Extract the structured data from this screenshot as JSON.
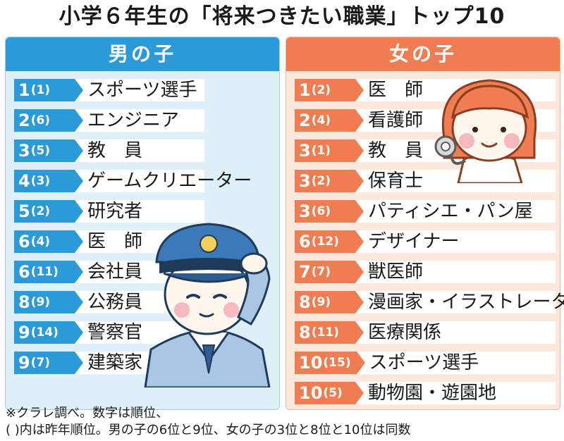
{
  "title": "小学６年生の「将来つきたい職業」トップ10",
  "boys": {
    "header": "男の子",
    "rows": [
      {
        "rank": "1",
        "prev": "(1)",
        "job": "スポーツ選手"
      },
      {
        "rank": "2",
        "prev": "(6)",
        "job": "エンジニア"
      },
      {
        "rank": "3",
        "prev": "(5)",
        "job": "教　員"
      },
      {
        "rank": "4",
        "prev": "(3)",
        "job": "ゲームクリエーター"
      },
      {
        "rank": "5",
        "prev": "(2)",
        "job": "研究者"
      },
      {
        "rank": "6",
        "prev": "(4)",
        "job": "医　師"
      },
      {
        "rank": "6",
        "prev": "(11)",
        "job": "会社員"
      },
      {
        "rank": "8",
        "prev": "(9)",
        "job": "公務員"
      },
      {
        "rank": "9",
        "prev": "(14)",
        "job": "警察官"
      },
      {
        "rank": "9",
        "prev": "(7)",
        "job": "建築家"
      }
    ]
  },
  "girls": {
    "header": "女の子",
    "rows": [
      {
        "rank": "1",
        "prev": "(2)",
        "job": "医　師"
      },
      {
        "rank": "2",
        "prev": "(4)",
        "job": "看護師"
      },
      {
        "rank": "3",
        "prev": "(1)",
        "job": "教　員"
      },
      {
        "rank": "3",
        "prev": "(2)",
        "job": "保育士"
      },
      {
        "rank": "3",
        "prev": "(6)",
        "job": "パティシエ・パン屋"
      },
      {
        "rank": "6",
        "prev": "(12)",
        "job": "デザイナー"
      },
      {
        "rank": "7",
        "prev": "(7)",
        "job": "獣医師"
      },
      {
        "rank": "8",
        "prev": "(9)",
        "job": "漫画家・イラストレーター"
      },
      {
        "rank": "8",
        "prev": "(11)",
        "job": "医療関係"
      },
      {
        "rank": "10",
        "prev": "(15)",
        "job": "スポーツ選手"
      },
      {
        "rank": "10",
        "prev": "(5)",
        "job": "動物園・遊園地"
      }
    ]
  },
  "notes": {
    "line1": "※クラレ調べ。数字は順位、",
    "line2": "( )内は昨年順位。男の子の6位と9位、女の子の3位と8位と10位は同数"
  },
  "colors": {
    "boys_accent": "#2a9ad8",
    "girls_accent": "#f07c52",
    "boys_bg": "#dff0f8",
    "girls_bg": "#fde8dd"
  },
  "icons": {
    "boys_illustration": "police-officer-saluting-icon",
    "girls_illustration": "doctor-with-stethoscope-icon"
  },
  "chart_data": {
    "type": "table",
    "title": "小学６年生の「将来つきたい職業」トップ10",
    "groups": [
      "男の子",
      "女の子"
    ],
    "series": [
      {
        "name": "男の子",
        "ranks": [
          1,
          2,
          3,
          4,
          5,
          6,
          6,
          8,
          9,
          9
        ],
        "previous_ranks": [
          1,
          6,
          5,
          3,
          2,
          4,
          11,
          9,
          14,
          7
        ],
        "jobs": [
          "スポーツ選手",
          "エンジニア",
          "教員",
          "ゲームクリエーター",
          "研究者",
          "医師",
          "会社員",
          "公務員",
          "警察官",
          "建築家"
        ]
      },
      {
        "name": "女の子",
        "ranks": [
          1,
          2,
          3,
          3,
          3,
          6,
          7,
          8,
          8,
          10,
          10
        ],
        "previous_ranks": [
          2,
          4,
          1,
          2,
          6,
          12,
          7,
          9,
          11,
          15,
          5
        ],
        "jobs": [
          "医師",
          "看護師",
          "教員",
          "保育士",
          "パティシエ・パン屋",
          "デザイナー",
          "獣医師",
          "漫画家・イラストレーター",
          "医療関係",
          "スポーツ選手",
          "動物園・遊園地"
        ]
      }
    ]
  }
}
